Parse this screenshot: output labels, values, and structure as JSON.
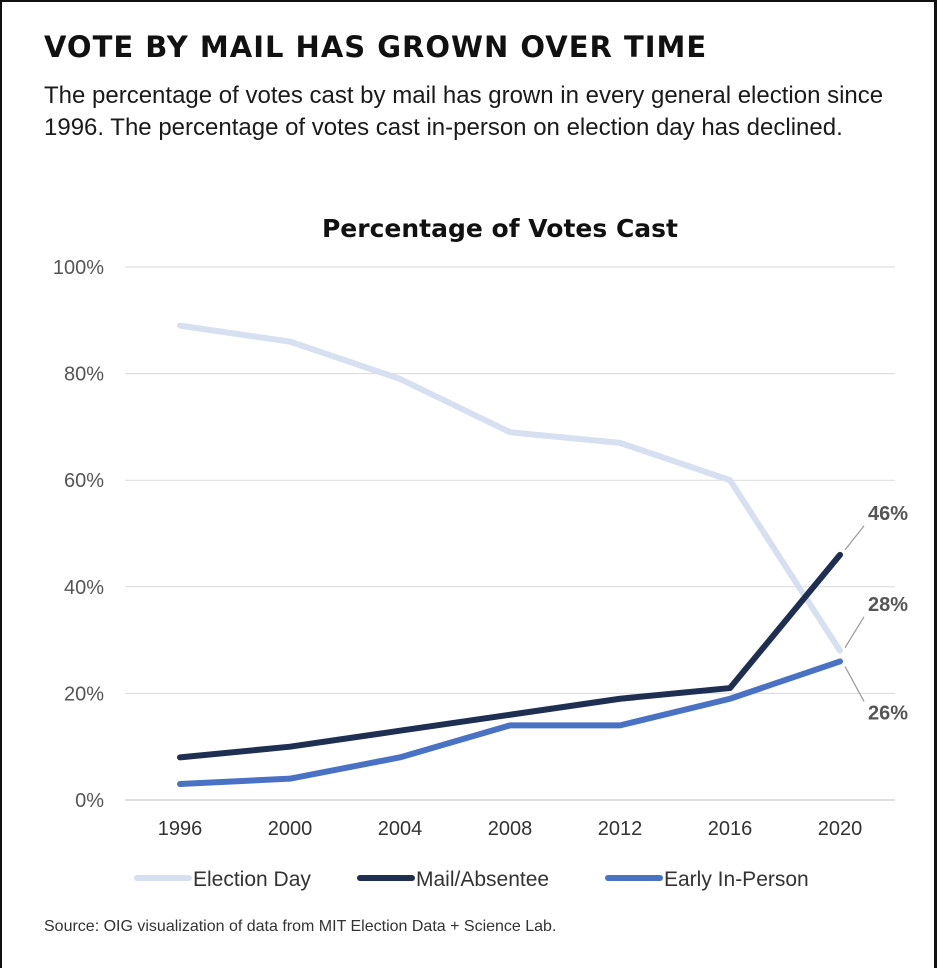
{
  "header": {
    "title": "VOTE BY MAIL HAS GROWN OVER TIME",
    "subtitle": "The percentage of votes cast by mail has grown in every general election since 1996. The percentage of votes cast in-person on election day has declined."
  },
  "footer": {
    "source": "Source: OIG visualization of data from MIT Election Data + Science Lab."
  },
  "chart_data": {
    "type": "line",
    "title": "Percentage of Votes Cast",
    "xlabel": "",
    "ylabel": "",
    "categories": [
      "1996",
      "2000",
      "2004",
      "2008",
      "2012",
      "2016",
      "2020"
    ],
    "ylim": [
      0,
      100
    ],
    "yticks": [
      "0%",
      "20%",
      "40%",
      "60%",
      "80%",
      "100%"
    ],
    "grid": "horizontal",
    "legend_position": "bottom",
    "series": [
      {
        "name": "Election Day",
        "color": "#d6e0f0",
        "values": [
          89,
          86,
          79,
          69,
          67,
          60,
          28
        ]
      },
      {
        "name": "Mail/Absentee",
        "color": "#1f2f52",
        "values": [
          8,
          10,
          13,
          16,
          19,
          21,
          46
        ]
      },
      {
        "name": "Early In-Person",
        "color": "#4a72c4",
        "values": [
          3,
          4,
          8,
          14,
          14,
          19,
          26
        ]
      }
    ],
    "annotations": [
      {
        "text": "46%",
        "series": 1,
        "index": 6
      },
      {
        "text": "28%",
        "series": 0,
        "index": 6
      },
      {
        "text": "26%",
        "series": 2,
        "index": 6
      }
    ]
  }
}
